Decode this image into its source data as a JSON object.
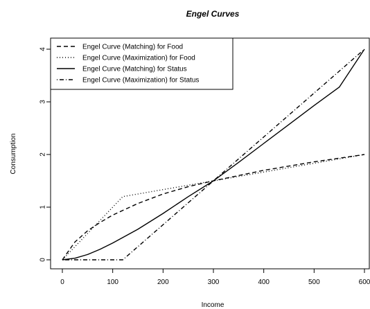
{
  "chart_data": {
    "type": "line",
    "title": "Engel Curves",
    "xlabel": "Income",
    "ylabel": "Consumption",
    "xlim": [
      0,
      600
    ],
    "ylim": [
      0,
      4
    ],
    "x_ticks": [
      0,
      100,
      200,
      300,
      400,
      500,
      600
    ],
    "y_ticks": [
      0,
      1,
      2,
      3,
      4
    ],
    "grid": false,
    "legend_position": "top-left",
    "series": [
      {
        "name": "Engel Curve (Matching) for Food",
        "line_style": "dashed",
        "x": [
          0,
          25,
          50,
          75,
          100,
          150,
          200,
          250,
          300,
          350,
          400,
          450,
          500,
          550,
          600
        ],
        "y": [
          0,
          0.34,
          0.55,
          0.71,
          0.85,
          1.07,
          1.25,
          1.39,
          1.5,
          1.6,
          1.7,
          1.78,
          1.86,
          1.93,
          2.0
        ]
      },
      {
        "name": "Engel Curve (Maximization) for Food",
        "line_style": "dotted",
        "x": [
          0,
          120,
          300,
          600
        ],
        "y": [
          0,
          1.2,
          1.5,
          2.0
        ]
      },
      {
        "name": "Engel Curve (Matching) for Status",
        "line_style": "solid",
        "x": [
          0,
          25,
          50,
          75,
          100,
          150,
          200,
          250,
          300,
          350,
          400,
          450,
          500,
          550,
          600
        ],
        "y": [
          0,
          0.03,
          0.1,
          0.2,
          0.32,
          0.58,
          0.88,
          1.2,
          1.5,
          1.85,
          2.21,
          2.57,
          2.93,
          3.28,
          4.0
        ]
      },
      {
        "name": "Engel Curve (Maximization) for Status",
        "line_style": "dotdash",
        "x": [
          0,
          120,
          300,
          600
        ],
        "y": [
          0,
          0,
          1.5,
          4.0
        ]
      }
    ]
  },
  "colors": {
    "line": "#000000",
    "background": "#ffffff"
  }
}
